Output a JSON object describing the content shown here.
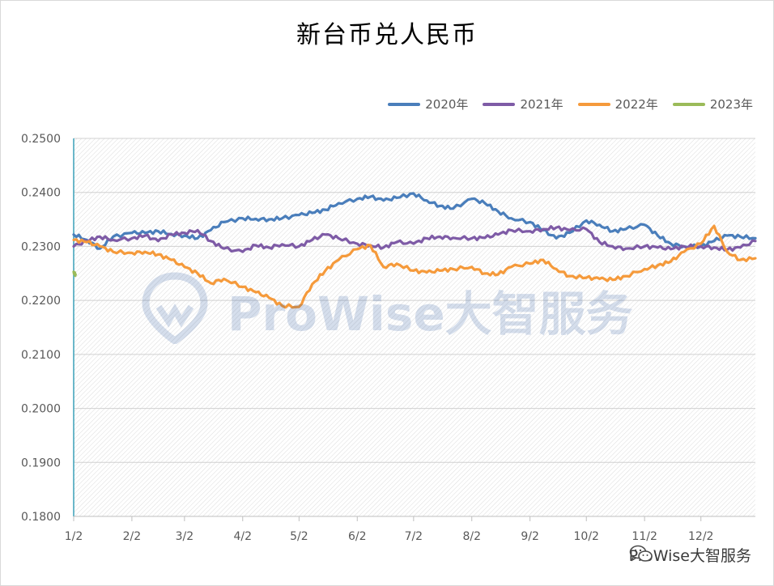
{
  "chart_data": {
    "type": "line",
    "title": "新台币兑人民币",
    "xlabel": "",
    "ylabel": "",
    "x_ticks": [
      "1/2",
      "2/2",
      "3/2",
      "4/2",
      "5/2",
      "6/2",
      "7/2",
      "8/2",
      "9/2",
      "10/2",
      "11/2",
      "12/2"
    ],
    "y_ticks": [
      "0.2500",
      "0.2400",
      "0.2300",
      "0.2200",
      "0.2100",
      "0.2000",
      "0.1900",
      "0.1800"
    ],
    "ylim": [
      0.18,
      0.25
    ],
    "grid": true,
    "legend_position": "top-right",
    "series": [
      {
        "name": "2020年",
        "color": "#4a7ebb",
        "x": [
          "1/2",
          "1/9",
          "1/16",
          "1/23",
          "2/2",
          "2/9",
          "2/16",
          "2/23",
          "3/2",
          "3/9",
          "3/16",
          "3/23",
          "4/2",
          "4/9",
          "4/16",
          "4/23",
          "5/2",
          "5/9",
          "5/16",
          "5/23",
          "6/2",
          "6/9",
          "6/16",
          "6/23",
          "7/2",
          "7/9",
          "7/16",
          "7/23",
          "8/2",
          "8/9",
          "8/16",
          "8/23",
          "9/2",
          "9/9",
          "9/16",
          "9/23",
          "10/2",
          "10/9",
          "10/16",
          "10/23",
          "11/2",
          "11/9",
          "11/16",
          "11/23",
          "12/2",
          "12/9",
          "12/16",
          "12/23",
          "12/31"
        ],
        "values": [
          0.2322,
          0.2312,
          0.2296,
          0.2318,
          0.2325,
          0.2325,
          0.2328,
          0.2323,
          0.232,
          0.2315,
          0.233,
          0.2345,
          0.2352,
          0.2351,
          0.235,
          0.2352,
          0.2358,
          0.2362,
          0.2368,
          0.238,
          0.2388,
          0.2392,
          0.2385,
          0.239,
          0.2398,
          0.2385,
          0.2375,
          0.237,
          0.2388,
          0.238,
          0.2365,
          0.2352,
          0.2345,
          0.233,
          0.2315,
          0.2325,
          0.2348,
          0.234,
          0.2328,
          0.2332,
          0.234,
          0.232,
          0.2305,
          0.23,
          0.23,
          0.231,
          0.232,
          0.2318,
          0.2315
        ]
      },
      {
        "name": "2021年",
        "color": "#7e5ba6",
        "x": [
          "1/2",
          "1/9",
          "1/16",
          "1/23",
          "2/2",
          "2/9",
          "2/16",
          "2/23",
          "3/2",
          "3/9",
          "3/16",
          "3/23",
          "4/2",
          "4/9",
          "4/16",
          "4/23",
          "5/2",
          "5/9",
          "5/16",
          "5/23",
          "6/2",
          "6/9",
          "6/16",
          "6/23",
          "7/2",
          "7/9",
          "7/16",
          "7/23",
          "8/2",
          "8/9",
          "8/16",
          "8/23",
          "9/2",
          "9/9",
          "9/16",
          "9/23",
          "10/2",
          "10/9",
          "10/16",
          "10/23",
          "11/2",
          "11/9",
          "11/16",
          "11/23",
          "12/2",
          "12/9",
          "12/16",
          "12/23",
          "12/31"
        ],
        "values": [
          0.23,
          0.231,
          0.2318,
          0.2312,
          0.2315,
          0.232,
          0.231,
          0.2322,
          0.2325,
          0.233,
          0.231,
          0.2296,
          0.229,
          0.2302,
          0.2298,
          0.2304,
          0.23,
          0.2312,
          0.2322,
          0.2315,
          0.2305,
          0.2302,
          0.2298,
          0.2308,
          0.2305,
          0.2315,
          0.2318,
          0.2316,
          0.2315,
          0.2316,
          0.2322,
          0.233,
          0.2328,
          0.2332,
          0.2335,
          0.233,
          0.2332,
          0.2308,
          0.23,
          0.2296,
          0.23,
          0.2298,
          0.2295,
          0.23,
          0.23,
          0.2298,
          0.2294,
          0.2298,
          0.231
        ]
      },
      {
        "name": "2022年",
        "color": "#f59a3b",
        "x": [
          "1/2",
          "1/9",
          "1/16",
          "1/23",
          "2/2",
          "2/9",
          "2/16",
          "2/23",
          "3/2",
          "3/9",
          "3/16",
          "3/23",
          "4/2",
          "4/9",
          "4/16",
          "4/23",
          "5/2",
          "5/9",
          "5/16",
          "5/23",
          "6/2",
          "6/9",
          "6/16",
          "6/23",
          "7/2",
          "7/9",
          "7/16",
          "7/23",
          "8/2",
          "8/9",
          "8/16",
          "8/23",
          "9/2",
          "9/9",
          "9/16",
          "9/23",
          "10/2",
          "10/9",
          "10/16",
          "10/23",
          "11/2",
          "11/9",
          "11/16",
          "11/23",
          "12/2",
          "12/9",
          "12/16",
          "12/23",
          "12/31"
        ],
        "values": [
          0.2312,
          0.2308,
          0.23,
          0.229,
          0.2288,
          0.229,
          0.2285,
          0.2275,
          0.2262,
          0.225,
          0.2232,
          0.224,
          0.2225,
          0.2215,
          0.2205,
          0.219,
          0.2188,
          0.223,
          0.2255,
          0.2275,
          0.2295,
          0.2302,
          0.2262,
          0.2268,
          0.2255,
          0.2252,
          0.2255,
          0.2258,
          0.2262,
          0.225,
          0.2248,
          0.2262,
          0.2268,
          0.2275,
          0.2258,
          0.2245,
          0.2242,
          0.224,
          0.2238,
          0.2245,
          0.2258,
          0.2265,
          0.2272,
          0.229,
          0.2305,
          0.2338,
          0.229,
          0.2275,
          0.2278
        ]
      },
      {
        "name": "2023年",
        "color": "#9bbb59",
        "x": [
          "1/2",
          "1/3"
        ],
        "values": [
          0.2253,
          0.2248
        ]
      }
    ],
    "watermark": "ProWise大智服务"
  },
  "footer": {
    "brand": "ProWise大智服务",
    "icon": "wechat-icon"
  }
}
